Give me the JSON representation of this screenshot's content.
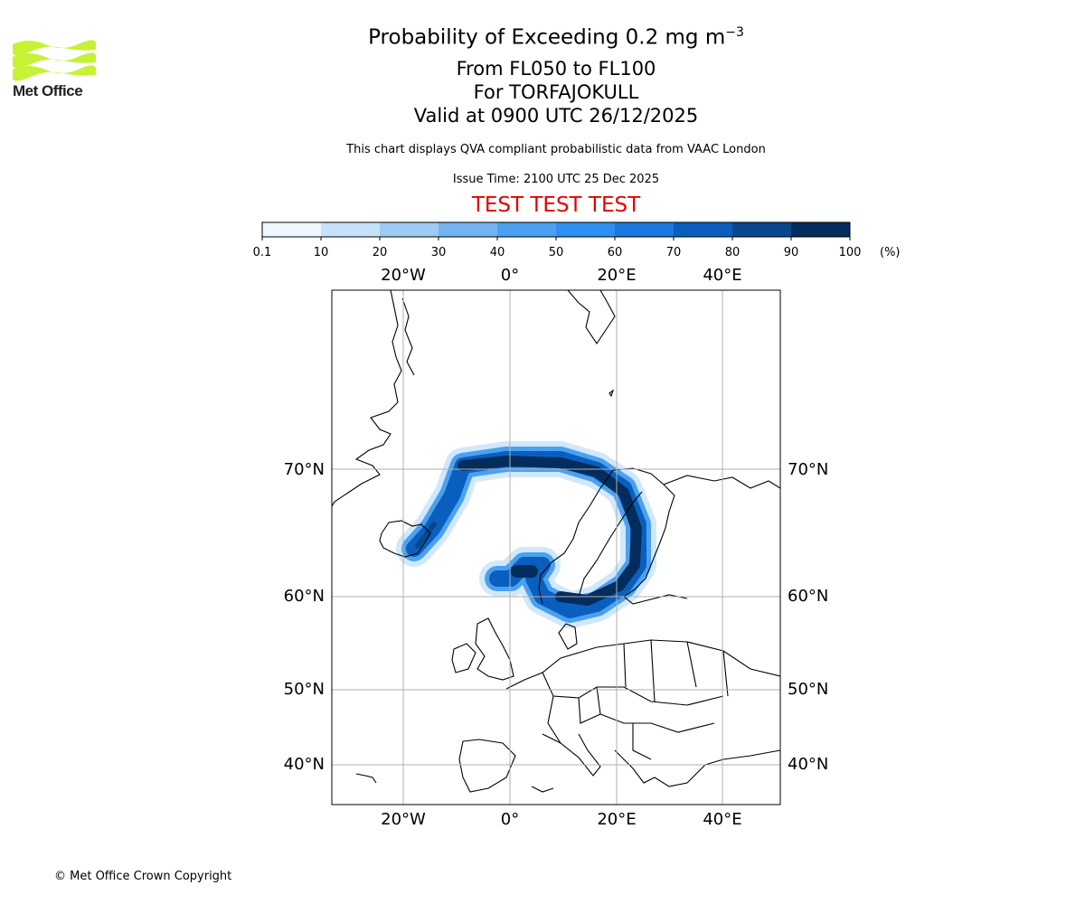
{
  "logo": {
    "text": "Met Office",
    "color": "#c6f236"
  },
  "header": {
    "title_main": "Probability of Exceeding 0.2 mg m",
    "title_sup": "−3",
    "levels": "From FL050 to FL100",
    "volcano": "For TORFAJOKULL",
    "valid": "Valid at 0900 UTC 26/12/2025",
    "description": "This chart displays QVA compliant probabilistic data from VAAC London",
    "issue_time": "Issue Time: 2100 UTC 25 Dec 2025",
    "test_banner": "TEST TEST TEST"
  },
  "colorbar": {
    "ticks": [
      "0.1",
      "10",
      "20",
      "30",
      "40",
      "50",
      "60",
      "70",
      "80",
      "90",
      "100"
    ],
    "unit": "(%)",
    "colors": [
      "#eef6ff",
      "#c6e2fb",
      "#9ecbf5",
      "#72b4f0",
      "#4aa1ef",
      "#2f8ff0",
      "#1a78e0",
      "#0a5fbe",
      "#08488f",
      "#042c5c"
    ]
  },
  "map": {
    "lon_labels": [
      "20°W",
      "0°",
      "20°E",
      "40°E"
    ],
    "lat_labels": [
      "70°N",
      "60°N",
      "50°N",
      "40°N"
    ],
    "ash_plume_probability": "high"
  },
  "footer": {
    "copyright": "© Met Office Crown Copyright"
  }
}
